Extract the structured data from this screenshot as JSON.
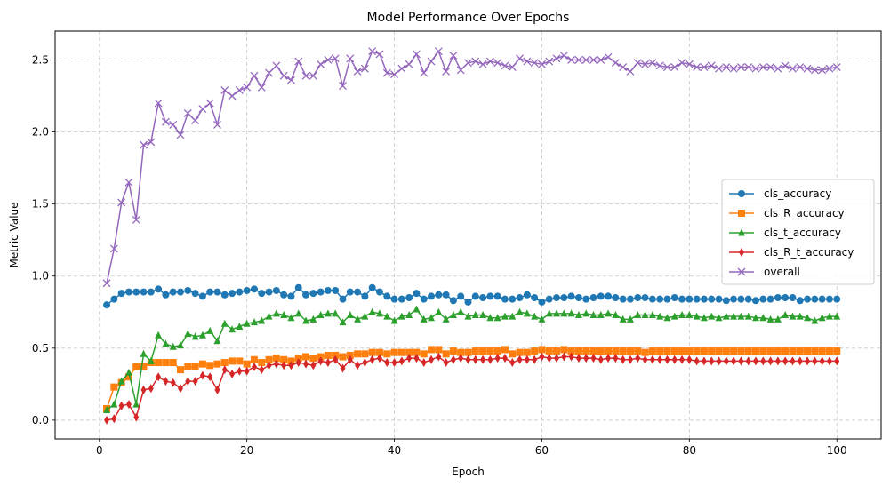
{
  "chart_data": {
    "type": "line",
    "title": "Model Performance Over Epochs",
    "xlabel": "Epoch",
    "ylabel": "Metric Value",
    "xlim": [
      -6,
      106
    ],
    "ylim": [
      -0.13,
      2.7
    ],
    "xticks": [
      0,
      20,
      40,
      60,
      80,
      100
    ],
    "yticks": [
      0.0,
      0.5,
      1.0,
      1.5,
      2.0,
      2.5
    ],
    "xtick_labels": [
      "0",
      "20",
      "40",
      "60",
      "80",
      "100"
    ],
    "ytick_labels": [
      "0.0",
      "0.5",
      "1.0",
      "1.5",
      "2.0",
      "2.5"
    ],
    "grid": true,
    "legend_position": "center-right",
    "x": [
      1,
      2,
      3,
      4,
      5,
      6,
      7,
      8,
      9,
      10,
      11,
      12,
      13,
      14,
      15,
      16,
      17,
      18,
      19,
      20,
      21,
      22,
      23,
      24,
      25,
      26,
      27,
      28,
      29,
      30,
      31,
      32,
      33,
      34,
      35,
      36,
      37,
      38,
      39,
      40,
      41,
      42,
      43,
      44,
      45,
      46,
      47,
      48,
      49,
      50,
      51,
      52,
      53,
      54,
      55,
      56,
      57,
      58,
      59,
      60,
      61,
      62,
      63,
      64,
      65,
      66,
      67,
      68,
      69,
      70,
      71,
      72,
      73,
      74,
      75,
      76,
      77,
      78,
      79,
      80,
      81,
      82,
      83,
      84,
      85,
      86,
      87,
      88,
      89,
      90,
      91,
      92,
      93,
      94,
      95,
      96,
      97,
      98,
      99,
      100
    ],
    "series": [
      {
        "name": "cls_accuracy",
        "color": "#1f77b4",
        "marker": "circle",
        "values": [
          0.8,
          0.84,
          0.88,
          0.89,
          0.89,
          0.89,
          0.89,
          0.91,
          0.87,
          0.89,
          0.89,
          0.9,
          0.88,
          0.86,
          0.89,
          0.89,
          0.87,
          0.88,
          0.89,
          0.9,
          0.91,
          0.88,
          0.89,
          0.9,
          0.87,
          0.86,
          0.92,
          0.87,
          0.88,
          0.89,
          0.9,
          0.9,
          0.84,
          0.89,
          0.89,
          0.86,
          0.92,
          0.89,
          0.86,
          0.84,
          0.84,
          0.85,
          0.88,
          0.84,
          0.86,
          0.87,
          0.87,
          0.83,
          0.86,
          0.82,
          0.86,
          0.85,
          0.86,
          0.86,
          0.84,
          0.84,
          0.85,
          0.87,
          0.85,
          0.82,
          0.84,
          0.85,
          0.85,
          0.86,
          0.85,
          0.84,
          0.85,
          0.86,
          0.86,
          0.85,
          0.84,
          0.84,
          0.85,
          0.85,
          0.84,
          0.84,
          0.84,
          0.85,
          0.84,
          0.84,
          0.84,
          0.84,
          0.84,
          0.84,
          0.83,
          0.84,
          0.84,
          0.84,
          0.83,
          0.84,
          0.84,
          0.85,
          0.85,
          0.85,
          0.83,
          0.84,
          0.84,
          0.84,
          0.84,
          0.84
        ]
      },
      {
        "name": "cls_R_accuracy",
        "color": "#ff7f0e",
        "marker": "square",
        "values": [
          0.08,
          0.23,
          0.26,
          0.3,
          0.37,
          0.37,
          0.4,
          0.4,
          0.4,
          0.4,
          0.35,
          0.37,
          0.37,
          0.39,
          0.38,
          0.39,
          0.4,
          0.41,
          0.41,
          0.39,
          0.42,
          0.4,
          0.42,
          0.43,
          0.42,
          0.41,
          0.43,
          0.44,
          0.43,
          0.44,
          0.45,
          0.45,
          0.44,
          0.45,
          0.46,
          0.46,
          0.47,
          0.47,
          0.46,
          0.47,
          0.47,
          0.47,
          0.47,
          0.46,
          0.49,
          0.49,
          0.46,
          0.48,
          0.47,
          0.47,
          0.48,
          0.48,
          0.48,
          0.48,
          0.49,
          0.46,
          0.47,
          0.47,
          0.48,
          0.49,
          0.48,
          0.48,
          0.49,
          0.48,
          0.48,
          0.48,
          0.48,
          0.48,
          0.48,
          0.48,
          0.48,
          0.48,
          0.48,
          0.47,
          0.48,
          0.48,
          0.48,
          0.48,
          0.48,
          0.48,
          0.48,
          0.48,
          0.48,
          0.48,
          0.48,
          0.48,
          0.48,
          0.48,
          0.48,
          0.48,
          0.48,
          0.48,
          0.48,
          0.48,
          0.48,
          0.48,
          0.48,
          0.48,
          0.48,
          0.48
        ]
      },
      {
        "name": "cls_t_accuracy",
        "color": "#2ca02c",
        "marker": "triangle",
        "values": [
          0.07,
          0.11,
          0.27,
          0.33,
          0.11,
          0.46,
          0.41,
          0.59,
          0.53,
          0.51,
          0.52,
          0.6,
          0.58,
          0.59,
          0.62,
          0.55,
          0.67,
          0.63,
          0.65,
          0.67,
          0.68,
          0.69,
          0.72,
          0.74,
          0.73,
          0.71,
          0.74,
          0.69,
          0.7,
          0.73,
          0.74,
          0.74,
          0.68,
          0.73,
          0.7,
          0.72,
          0.75,
          0.74,
          0.72,
          0.69,
          0.72,
          0.73,
          0.77,
          0.7,
          0.71,
          0.75,
          0.7,
          0.73,
          0.75,
          0.72,
          0.73,
          0.73,
          0.71,
          0.71,
          0.72,
          0.72,
          0.75,
          0.74,
          0.72,
          0.7,
          0.74,
          0.74,
          0.74,
          0.74,
          0.73,
          0.74,
          0.73,
          0.73,
          0.74,
          0.73,
          0.7,
          0.7,
          0.73,
          0.73,
          0.73,
          0.72,
          0.71,
          0.72,
          0.73,
          0.73,
          0.72,
          0.71,
          0.72,
          0.71,
          0.72,
          0.72,
          0.72,
          0.72,
          0.71,
          0.71,
          0.7,
          0.7,
          0.73,
          0.72,
          0.72,
          0.71,
          0.69,
          0.71,
          0.72,
          0.72
        ]
      },
      {
        "name": "cls_R_t_accuracy",
        "color": "#d62728",
        "marker": "diamond",
        "values": [
          0.0,
          0.01,
          0.1,
          0.11,
          0.02,
          0.21,
          0.22,
          0.3,
          0.27,
          0.26,
          0.22,
          0.27,
          0.27,
          0.31,
          0.3,
          0.21,
          0.35,
          0.32,
          0.34,
          0.34,
          0.37,
          0.35,
          0.38,
          0.39,
          0.38,
          0.38,
          0.4,
          0.39,
          0.38,
          0.41,
          0.4,
          0.42,
          0.36,
          0.42,
          0.38,
          0.4,
          0.42,
          0.43,
          0.4,
          0.4,
          0.41,
          0.43,
          0.43,
          0.4,
          0.42,
          0.44,
          0.4,
          0.42,
          0.43,
          0.42,
          0.42,
          0.42,
          0.42,
          0.43,
          0.43,
          0.4,
          0.42,
          0.42,
          0.42,
          0.44,
          0.43,
          0.43,
          0.44,
          0.44,
          0.43,
          0.43,
          0.43,
          0.42,
          0.43,
          0.43,
          0.42,
          0.42,
          0.43,
          0.42,
          0.42,
          0.42,
          0.42,
          0.42,
          0.42,
          0.42,
          0.41,
          0.41,
          0.41,
          0.41,
          0.41,
          0.41,
          0.41,
          0.41,
          0.41,
          0.41,
          0.41,
          0.41,
          0.41,
          0.41,
          0.41,
          0.41,
          0.41,
          0.41,
          0.41,
          0.41
        ]
      },
      {
        "name": "overall",
        "color": "#9467bd",
        "marker": "x",
        "values": [
          0.95,
          1.19,
          1.51,
          1.65,
          1.39,
          1.91,
          1.93,
          2.2,
          2.07,
          2.05,
          1.98,
          2.13,
          2.08,
          2.16,
          2.2,
          2.05,
          2.29,
          2.25,
          2.29,
          2.31,
          2.39,
          2.31,
          2.41,
          2.46,
          2.39,
          2.36,
          2.49,
          2.39,
          2.39,
          2.47,
          2.5,
          2.51,
          2.32,
          2.51,
          2.42,
          2.44,
          2.56,
          2.54,
          2.41,
          2.4,
          2.44,
          2.47,
          2.54,
          2.41,
          2.49,
          2.56,
          2.42,
          2.53,
          2.43,
          2.48,
          2.49,
          2.47,
          2.49,
          2.48,
          2.46,
          2.45,
          2.51,
          2.49,
          2.48,
          2.47,
          2.49,
          2.51,
          2.53,
          2.5,
          2.5,
          2.5,
          2.5,
          2.5,
          2.52,
          2.48,
          2.45,
          2.42,
          2.48,
          2.47,
          2.48,
          2.46,
          2.45,
          2.45,
          2.48,
          2.47,
          2.45,
          2.45,
          2.46,
          2.44,
          2.45,
          2.44,
          2.45,
          2.45,
          2.44,
          2.45,
          2.45,
          2.44,
          2.46,
          2.44,
          2.45,
          2.44,
          2.43,
          2.43,
          2.44,
          2.45
        ]
      }
    ]
  }
}
